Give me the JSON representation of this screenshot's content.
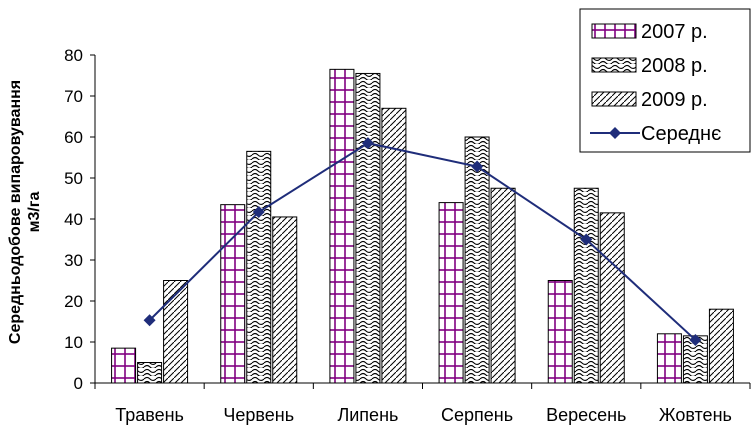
{
  "chart_data": {
    "type": "bar",
    "title": "",
    "xlabel": "",
    "ylabel": "Середньодобове випаровування м3/га",
    "ylabel_lines": [
      "Середньодобове випаровування",
      "м3/га"
    ],
    "ylim": [
      0,
      80
    ],
    "yticks": [
      0,
      10,
      20,
      30,
      40,
      50,
      60,
      70,
      80
    ],
    "grid": false,
    "legend": "top-right",
    "categories": [
      "Травень",
      "Червень",
      "Липень",
      "Серпень",
      "Вересень",
      "Жовтень"
    ],
    "series": [
      {
        "name": "2007 р.",
        "type": "bar",
        "pattern": "grid",
        "color": "#800080",
        "values": [
          8.5,
          43.5,
          76.5,
          44,
          25,
          12
        ]
      },
      {
        "name": "2008 р.",
        "type": "bar",
        "pattern": "wave",
        "color": "#000000",
        "values": [
          5,
          56.5,
          75.5,
          60,
          47.5,
          11.5
        ]
      },
      {
        "name": "2009 р.",
        "type": "bar",
        "pattern": "diagonal",
        "color": "#000000",
        "values": [
          25,
          40.5,
          67,
          47.5,
          41.5,
          18
        ]
      },
      {
        "name": "Середнє",
        "type": "line",
        "marker": "diamond",
        "color": "#1f2d7a",
        "values": [
          15.3,
          41.7,
          58.5,
          52.8,
          35,
          10.5
        ]
      }
    ]
  }
}
